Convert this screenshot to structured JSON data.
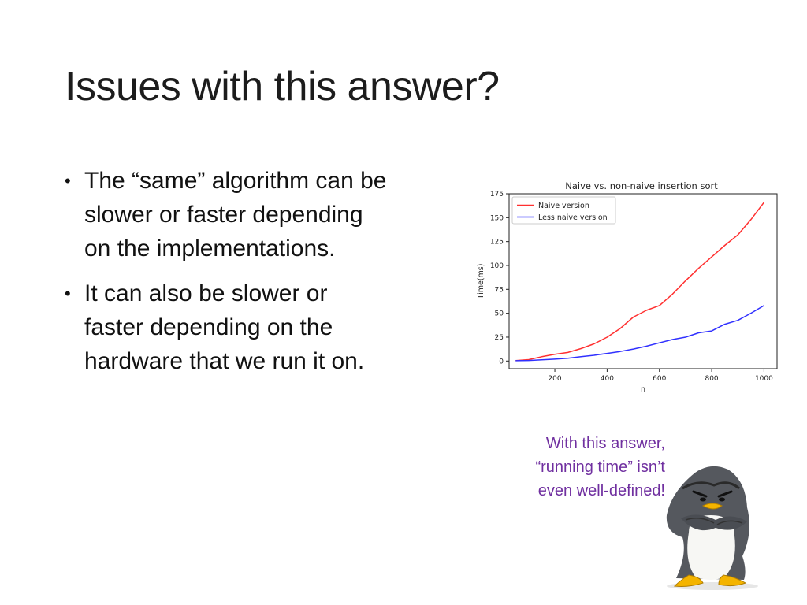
{
  "slide": {
    "title": "Issues with this answer?",
    "bullets": [
      {
        "lines": [
          "The “same” algorithm can be",
          "slower or faster depending",
          "on  the implementations."
        ]
      },
      {
        "lines": [
          "It can also be slower or",
          "faster depending on the",
          "hardware that we run it on."
        ]
      }
    ],
    "bullet_glyph": "•",
    "quote_lines": [
      "With this answer,",
      "“running time” isn’t",
      "even well-defined!"
    ],
    "quote_color": "#7030a0",
    "penguin_icon": "grumpy-penguin-icon"
  },
  "chart_data": {
    "type": "line",
    "title": "Naive vs. non-naive insertion sort",
    "xlabel": "n",
    "ylabel": "Time(ms)",
    "xlim": [
      25,
      1050
    ],
    "ylim": [
      -8,
      175
    ],
    "xticks": [
      200,
      400,
      600,
      800,
      1000
    ],
    "yticks": [
      0,
      25,
      50,
      75,
      100,
      125,
      150,
      175
    ],
    "grid": false,
    "legend_position": "top-left",
    "series": [
      {
        "name": "Naive version",
        "color": "#ff3030",
        "x": [
          50,
          100,
          150,
          200,
          250,
          300,
          350,
          400,
          450,
          500,
          550,
          600,
          650,
          700,
          750,
          800,
          850,
          900,
          950,
          1000
        ],
        "y": [
          0.5,
          1.5,
          4.5,
          7,
          9,
          13,
          18,
          25,
          34,
          46,
          53,
          58,
          70,
          84,
          97,
          109,
          121,
          132,
          148,
          166
        ]
      },
      {
        "name": "Less naive version",
        "color": "#3030ff",
        "x": [
          50,
          100,
          150,
          200,
          250,
          300,
          350,
          400,
          450,
          500,
          550,
          600,
          650,
          700,
          750,
          800,
          850,
          900,
          950,
          1000
        ],
        "y": [
          0.3,
          0.6,
          1.2,
          2,
          3,
          4.5,
          6,
          8,
          10,
          12.5,
          15.5,
          19,
          22.5,
          25,
          29.5,
          31.5,
          38.5,
          42.5,
          50,
          58
        ]
      }
    ]
  }
}
